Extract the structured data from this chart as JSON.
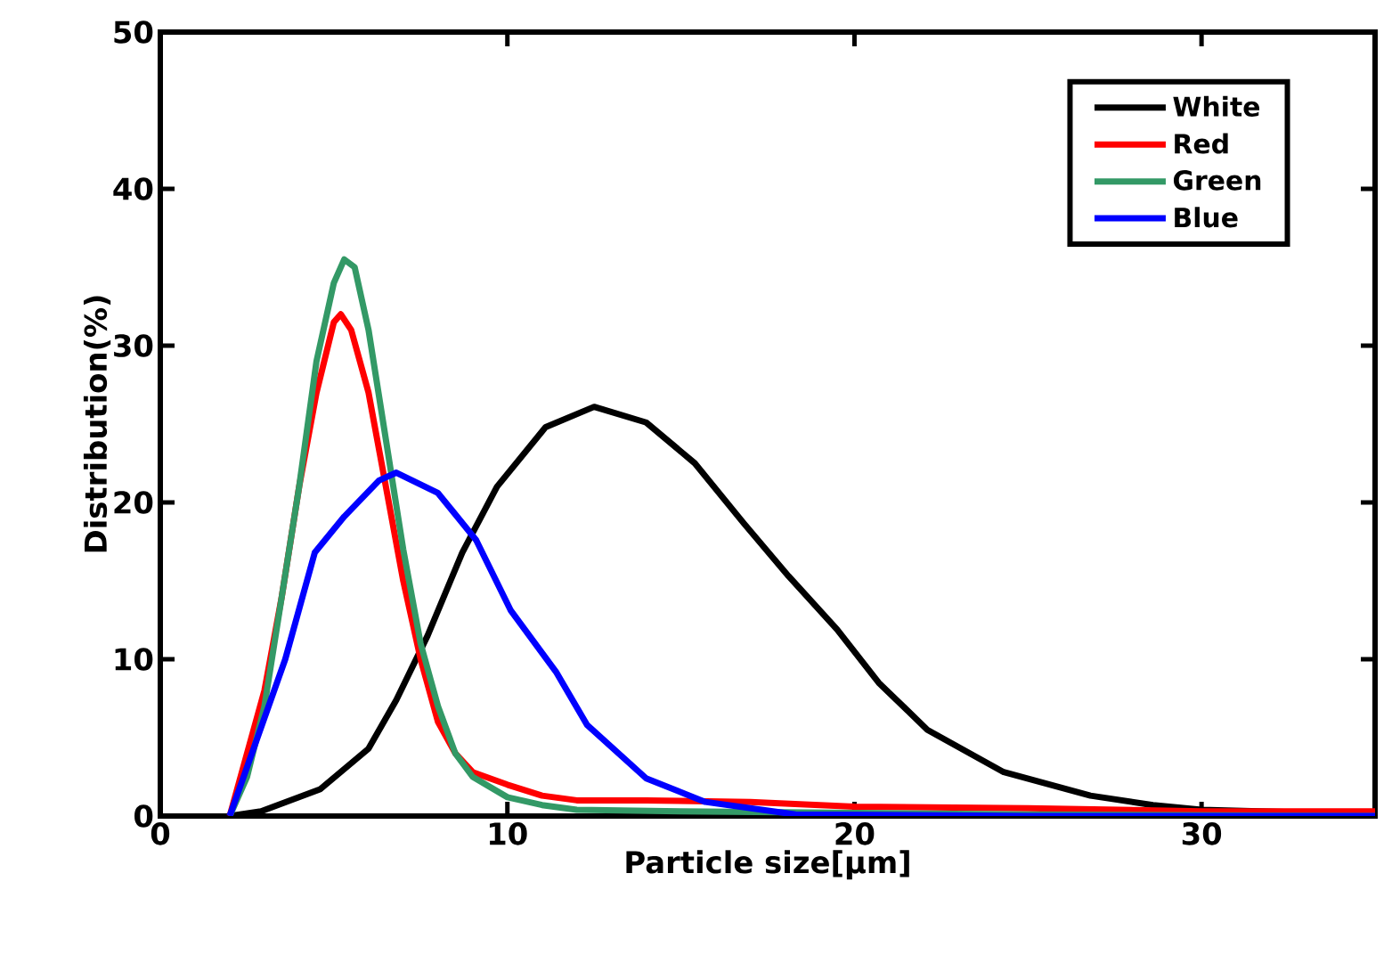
{
  "chart_data": {
    "type": "line",
    "xlabel": "Particle size[μm]",
    "ylabel": "Distribution(%)",
    "xlim": [
      0,
      35
    ],
    "ylim": [
      0,
      50
    ],
    "xticks": [
      0,
      10,
      20,
      30
    ],
    "yticks": [
      0,
      10,
      20,
      30,
      40,
      50
    ],
    "grid": false,
    "legend": "top right",
    "marker": "none",
    "line_style": "solid",
    "series": [
      {
        "name": "White",
        "color": "#000000",
        "x": [
          2,
          2.9,
          4.6,
          6,
          6.8,
          7.7,
          8.7,
          9.7,
          11.1,
          12.5,
          14,
          15.4,
          16.8,
          18.1,
          19.5,
          20.7,
          22.1,
          24.3,
          26.8,
          28.6,
          30,
          35
        ],
        "values": [
          0,
          0.3,
          1.7,
          4.3,
          7.4,
          11.5,
          16.8,
          21,
          24.8,
          26.1,
          25.1,
          22.5,
          18.7,
          15.3,
          11.9,
          8.5,
          5.5,
          2.8,
          1.3,
          0.7,
          0.4,
          0.1
        ]
      },
      {
        "name": "Red",
        "color": "#ff0000",
        "x": [
          2,
          3,
          3.5,
          4,
          4.5,
          5,
          5.2,
          5.5,
          6,
          6.5,
          7,
          7.5,
          8,
          8.5,
          9,
          10,
          11,
          12,
          14,
          17,
          20,
          25,
          30,
          35
        ],
        "values": [
          0,
          8,
          14,
          21,
          27,
          31.5,
          32,
          31,
          27,
          21,
          15,
          10,
          6,
          4,
          2.8,
          2,
          1.3,
          1,
          1,
          0.9,
          0.6,
          0.5,
          0.3,
          0.3
        ]
      },
      {
        "name": "Green",
        "color": "#339966",
        "x": [
          2,
          2.5,
          3,
          3.5,
          4,
          4.5,
          5,
          5.3,
          5.6,
          6,
          6.5,
          7,
          7.5,
          8,
          8.5,
          9,
          10,
          11,
          12,
          15,
          20,
          25,
          35
        ],
        "values": [
          0,
          2.5,
          7,
          14,
          21,
          29,
          34,
          35.5,
          35,
          31,
          24,
          17,
          11,
          7,
          4,
          2.5,
          1.2,
          0.7,
          0.4,
          0.3,
          0.2,
          0.1,
          0
        ]
      },
      {
        "name": "Blue",
        "color": "#0000ff",
        "x": [
          2,
          3.6,
          4.45,
          5.3,
          6.3,
          6.8,
          8,
          9.1,
          10.1,
          11.4,
          12.3,
          14,
          15.7,
          18.3,
          25,
          35
        ],
        "values": [
          0,
          10,
          16.8,
          19.1,
          21.4,
          21.9,
          20.6,
          17.6,
          13.1,
          9.2,
          5.8,
          2.4,
          0.9,
          0.1,
          0,
          0
        ]
      }
    ]
  }
}
